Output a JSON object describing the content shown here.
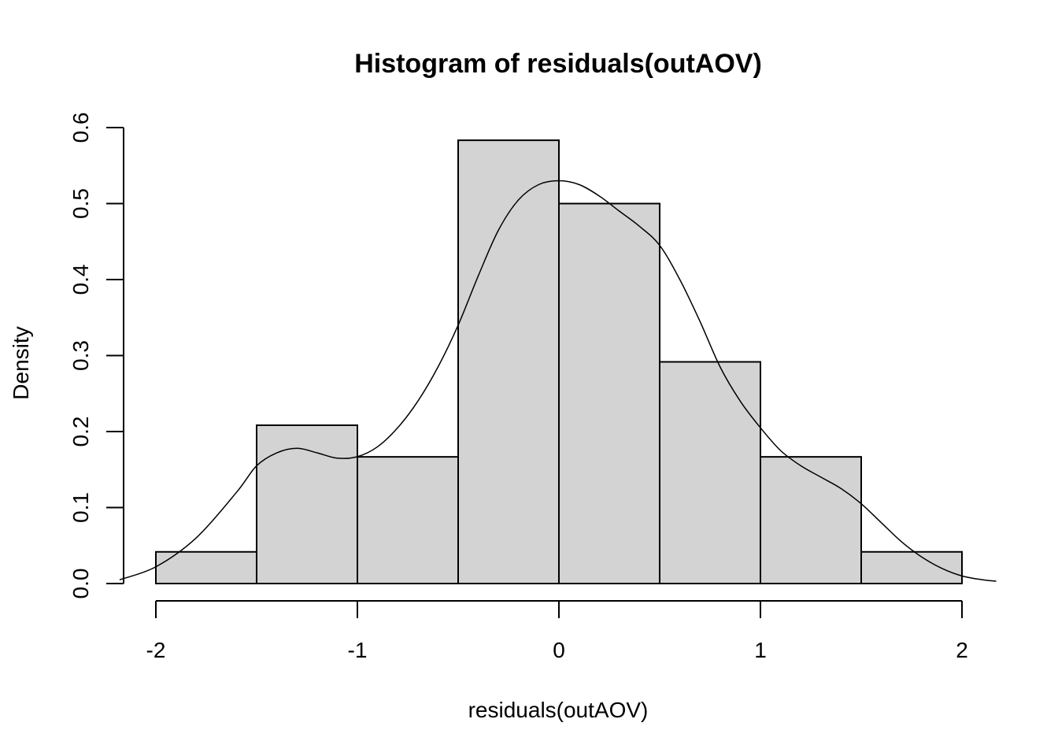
{
  "chart_data": {
    "type": "histogram",
    "title": "Histogram of residuals(outAOV)",
    "xlabel": "residuals(outAOV)",
    "ylabel": "Density",
    "bins": [
      {
        "x0": -2.0,
        "x1": -1.5,
        "density": 0.0417
      },
      {
        "x0": -1.5,
        "x1": -1.0,
        "density": 0.2083
      },
      {
        "x0": -1.0,
        "x1": -0.5,
        "density": 0.1667
      },
      {
        "x0": -0.5,
        "x1": 0.0,
        "density": 0.5833
      },
      {
        "x0": 0.0,
        "x1": 0.5,
        "density": 0.5
      },
      {
        "x0": 0.5,
        "x1": 1.0,
        "density": 0.2917
      },
      {
        "x0": 1.0,
        "x1": 1.5,
        "density": 0.1667
      },
      {
        "x0": 1.5,
        "x1": 2.0,
        "density": 0.0417
      }
    ],
    "density_curve": {
      "x": [
        -2.18,
        -2.0,
        -1.8,
        -1.6,
        -1.5,
        -1.4,
        -1.3,
        -1.2,
        -1.1,
        -1.0,
        -0.9,
        -0.8,
        -0.7,
        -0.6,
        -0.5,
        -0.4,
        -0.3,
        -0.2,
        -0.1,
        0.0,
        0.1,
        0.2,
        0.3,
        0.4,
        0.5,
        0.6,
        0.7,
        0.8,
        0.9,
        1.0,
        1.1,
        1.2,
        1.3,
        1.4,
        1.5,
        1.6,
        1.7,
        1.8,
        1.9,
        2.0,
        2.1,
        2.17
      ],
      "y": [
        0.005,
        0.022,
        0.06,
        0.12,
        0.155,
        0.172,
        0.178,
        0.172,
        0.165,
        0.167,
        0.18,
        0.205,
        0.24,
        0.285,
        0.34,
        0.405,
        0.465,
        0.505,
        0.525,
        0.53,
        0.525,
        0.51,
        0.49,
        0.47,
        0.445,
        0.4,
        0.345,
        0.285,
        0.24,
        0.205,
        0.175,
        0.155,
        0.14,
        0.125,
        0.105,
        0.08,
        0.055,
        0.035,
        0.02,
        0.01,
        0.005,
        0.003
      ]
    },
    "xlim": [
      -2.18,
      2.18
    ],
    "ylim": [
      0,
      0.6
    ],
    "xticks": [
      -2,
      -1,
      0,
      1,
      2
    ],
    "xtick_labels": [
      "-2",
      "-1",
      "0",
      "1",
      "2"
    ],
    "yticks": [
      0,
      0.1,
      0.2,
      0.3,
      0.4,
      0.5,
      0.6
    ],
    "ytick_labels": [
      "0.0",
      "0.1",
      "0.2",
      "0.3",
      "0.4",
      "0.5",
      "0.6"
    ],
    "bar_fill": "#d3d3d3",
    "line_color": "#000000",
    "grid": false
  }
}
